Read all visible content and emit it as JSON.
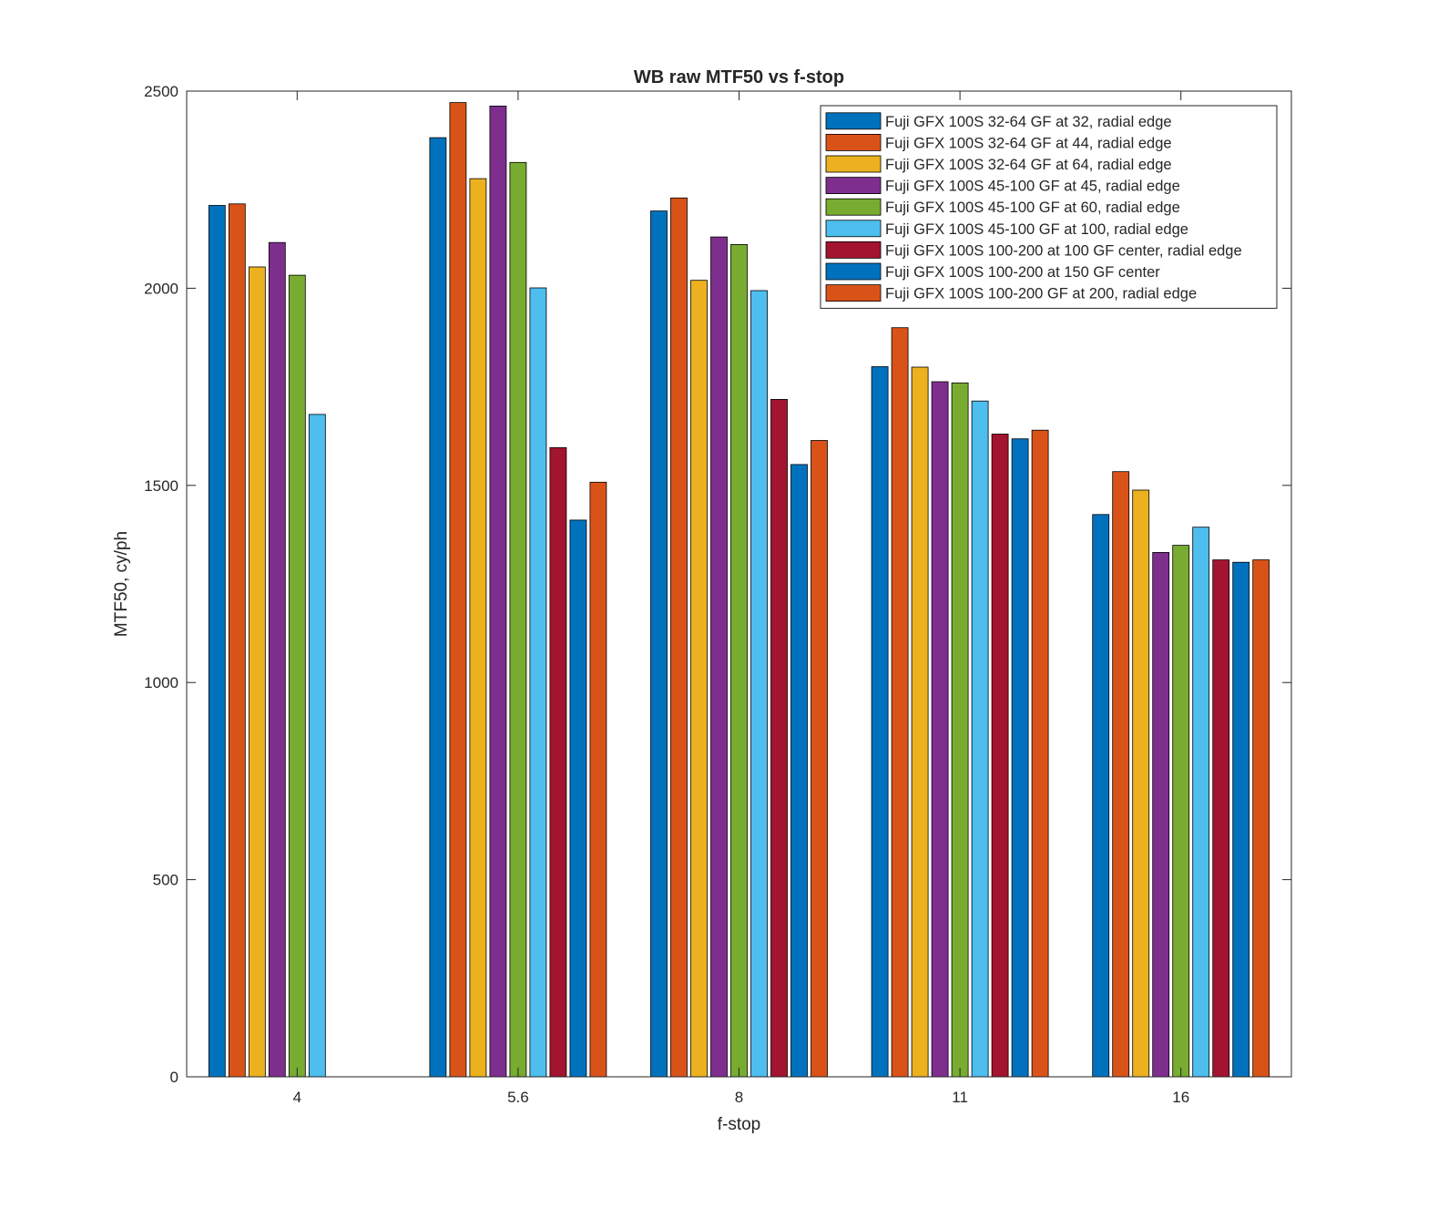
{
  "chart_data": {
    "type": "bar",
    "title": "WB raw MTF50 vs f-stop",
    "xlabel": "f-stop",
    "ylabel": "MTF50, cy/ph",
    "categories": [
      "4",
      "5.6",
      "8",
      "11",
      "16"
    ],
    "ylim": [
      0,
      2500
    ],
    "yticks": [
      0,
      500,
      1000,
      1500,
      2000,
      2500
    ],
    "grid": false,
    "legend_position": "top-right",
    "series": [
      {
        "name": "Fuji GFX 100S 32-64 GF at 32, radial edge",
        "color": "#0072BD",
        "values": [
          2210,
          2382,
          2196,
          1801,
          1426
        ]
      },
      {
        "name": "Fuji GFX 100S 32-64 GF at 44, radial edge",
        "color": "#D95319",
        "values": [
          2214,
          2471,
          2229,
          1900,
          1535
        ]
      },
      {
        "name": "Fuji GFX 100S 32-64 GF at 64, radial edge",
        "color": "#EDB120",
        "values": [
          2054,
          2278,
          2020,
          1800,
          1488
        ]
      },
      {
        "name": "Fuji GFX 100S 45-100 GF at 45, radial edge",
        "color": "#7E2F8E",
        "values": [
          2116,
          2462,
          2130,
          1763,
          1330
        ]
      },
      {
        "name": "Fuji GFX 100S 45-100 GF at 60, radial edge",
        "color": "#77AC30",
        "values": [
          2033,
          2319,
          2111,
          1760,
          1348
        ]
      },
      {
        "name": "Fuji GFX 100S 45-100 GF at 100, radial edge",
        "color": "#4DBEEE",
        "values": [
          1680,
          2001,
          1994,
          1714,
          1394
        ]
      },
      {
        "name": "Fuji GFX 100S 100-200 at 100 GF center, radial edge",
        "color": "#A2142F",
        "values": [
          null,
          1596,
          1718,
          1630,
          1311
        ]
      },
      {
        "name": "Fuji GFX 100S 100-200 at 150 GF center",
        "color": "#0072BD",
        "values": [
          null,
          1412,
          1553,
          1618,
          1305
        ]
      },
      {
        "name": "Fuji GFX 100S 100-200 GF at 200, radial edge",
        "color": "#D95319",
        "values": [
          null,
          1508,
          1614,
          1640,
          1311
        ]
      }
    ]
  }
}
